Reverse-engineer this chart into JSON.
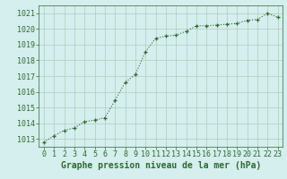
{
  "x": [
    0,
    1,
    2,
    3,
    4,
    5,
    6,
    7,
    8,
    9,
    10,
    11,
    12,
    13,
    14,
    15,
    16,
    17,
    18,
    19,
    20,
    21,
    22,
    23
  ],
  "y": [
    1012.8,
    1013.2,
    1013.55,
    1013.7,
    1014.1,
    1014.2,
    1014.35,
    1015.45,
    1016.6,
    1017.1,
    1018.55,
    1019.4,
    1019.55,
    1019.6,
    1019.85,
    1020.2,
    1020.2,
    1020.25,
    1020.3,
    1020.35,
    1020.55,
    1020.6,
    1021.0,
    1020.75
  ],
  "line_color": "#2d6b2d",
  "marker": "P",
  "marker_color": "#2d6b2d",
  "bg_color": "#d5eeee",
  "grid_color": "#b0ccbb",
  "xlabel": "Graphe pression niveau de la mer (hPa)",
  "xlabel_color": "#2d6b2d",
  "tick_color": "#2d6b2d",
  "ylim": [
    1012.5,
    1021.5
  ],
  "yticks": [
    1013,
    1014,
    1015,
    1016,
    1017,
    1018,
    1019,
    1020,
    1021
  ],
  "xlim": [
    -0.5,
    23.5
  ],
  "xticks": [
    0,
    1,
    2,
    3,
    4,
    5,
    6,
    7,
    8,
    9,
    10,
    11,
    12,
    13,
    14,
    15,
    16,
    17,
    18,
    19,
    20,
    21,
    22,
    23
  ],
  "tick_fontsize": 6,
  "xlabel_fontsize": 7,
  "linewidth": 0.8,
  "markersize": 3
}
